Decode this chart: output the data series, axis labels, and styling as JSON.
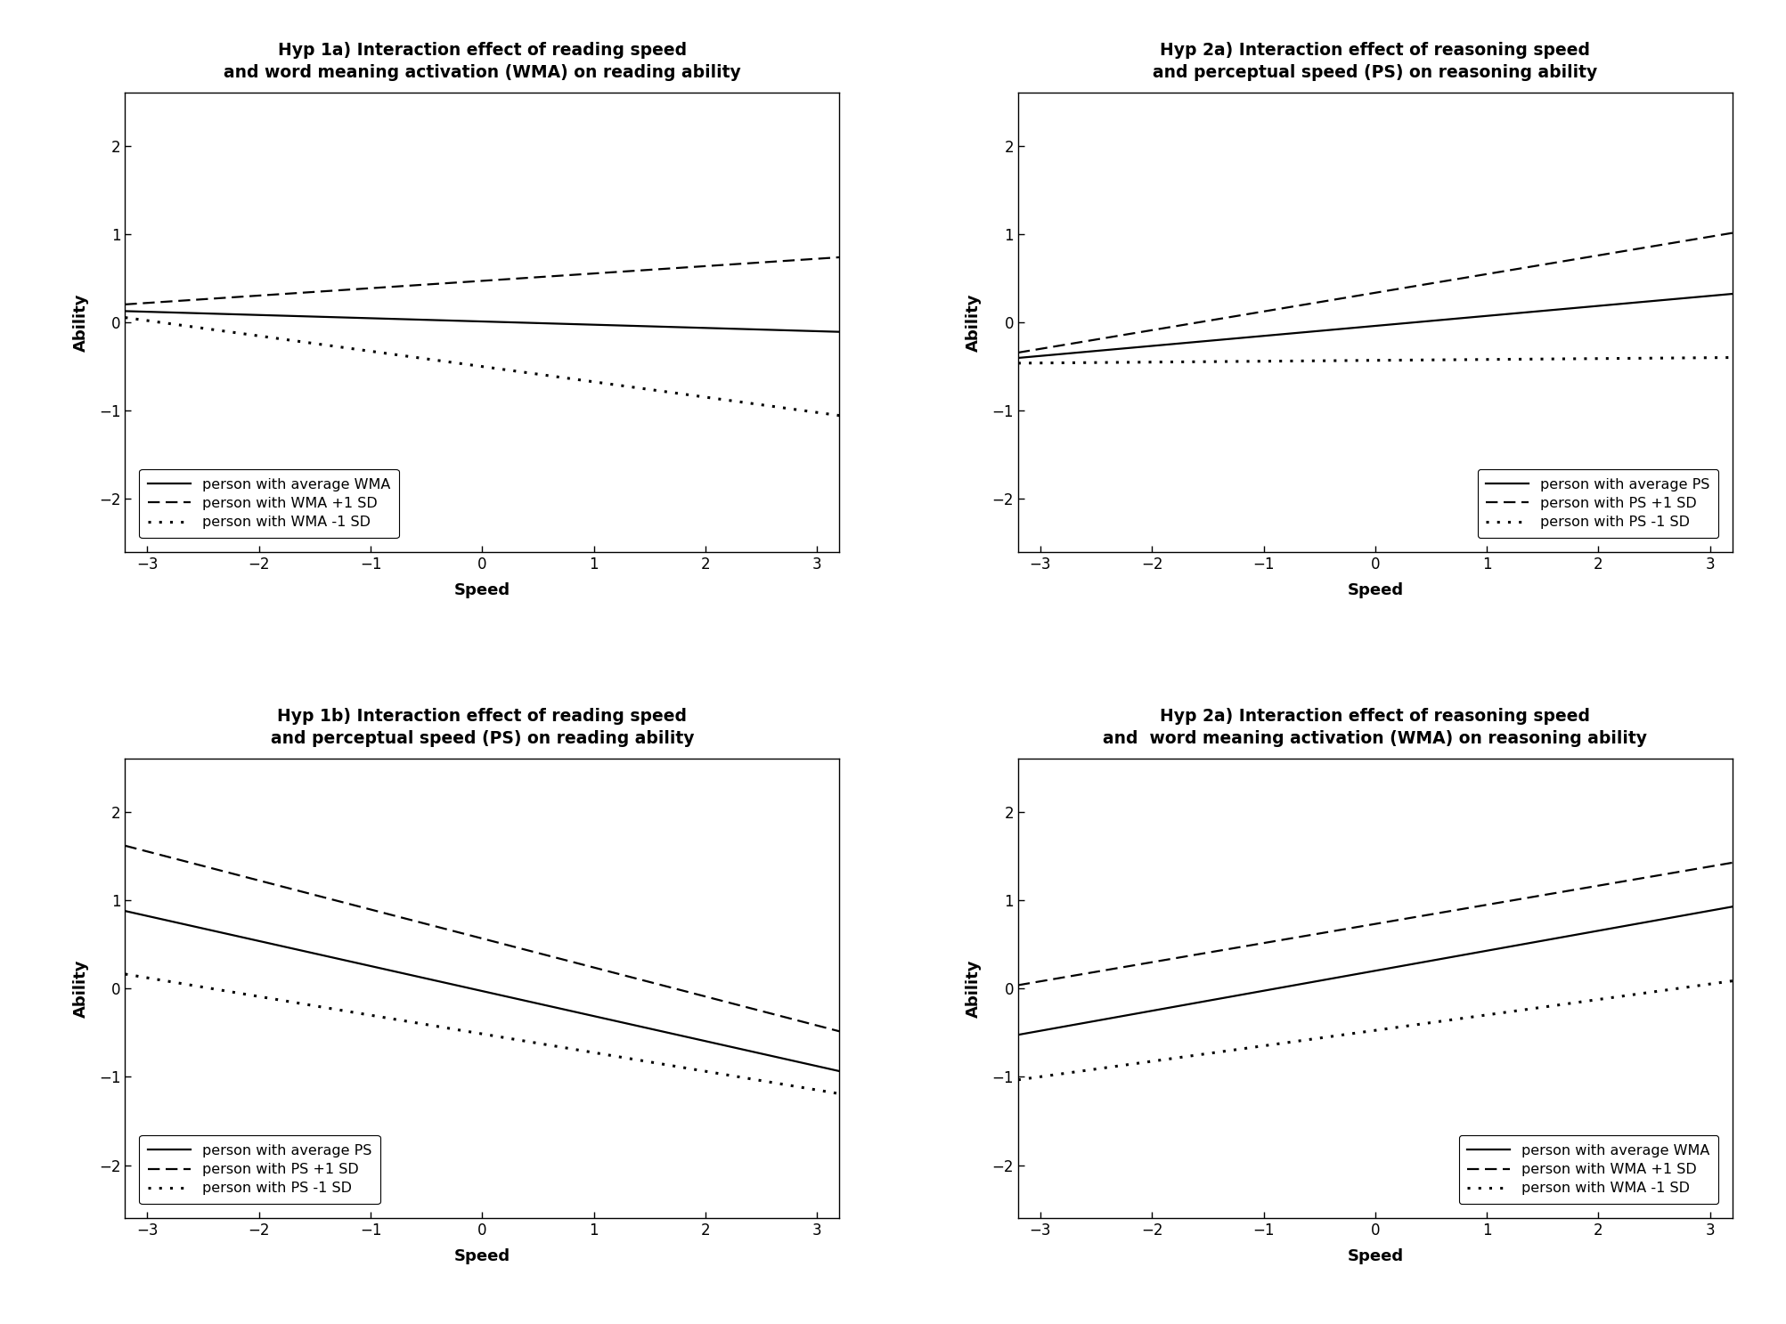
{
  "plots": [
    {
      "title": "Hyp 1a) Interaction effect of reading speed\nand word meaning activation (WMA) on reading ability",
      "xlabel": "Speed",
      "ylabel": "Ability",
      "xlim": [
        -3.2,
        3.2
      ],
      "ylim": [
        -2.6,
        2.6
      ],
      "yticks": [
        -2,
        -1,
        0,
        1,
        2
      ],
      "xticks": [
        -3,
        -2,
        -1,
        0,
        1,
        2,
        3
      ],
      "lines": [
        {
          "label": "person with average WMA",
          "style": "solid",
          "start": 0.12,
          "end": -0.1
        },
        {
          "label": "person with WMA +1 SD",
          "style": "dashed",
          "start": 0.22,
          "end": 0.72
        },
        {
          "label": "person with WMA -1 SD",
          "style": "dotted",
          "start": 0.02,
          "end": -1.02
        }
      ],
      "legend_loc": "lower left",
      "legend_bbox": null
    },
    {
      "title": "Hyp 2a) Interaction effect of reasoning speed\nand perceptual speed (PS) on reasoning ability",
      "xlabel": "Speed",
      "ylabel": "Ability",
      "xlim": [
        -3.2,
        3.2
      ],
      "ylim": [
        -2.6,
        2.6
      ],
      "yticks": [
        -2,
        -1,
        0,
        1,
        2
      ],
      "xticks": [
        -3,
        -2,
        -1,
        0,
        1,
        2,
        3
      ],
      "lines": [
        {
          "label": "person with average PS",
          "style": "solid",
          "start": -0.38,
          "end": 0.3
        },
        {
          "label": "person with PS +1 SD",
          "style": "dashed",
          "start": -0.3,
          "end": 0.97
        },
        {
          "label": "person with PS -1 SD",
          "style": "dotted",
          "start": -0.46,
          "end": -0.4
        }
      ],
      "legend_loc": "lower right",
      "legend_bbox": null
    },
    {
      "title": "Hyp 1b) Interaction effect of reading speed\nand perceptual speed (PS) on reading ability",
      "xlabel": "Speed",
      "ylabel": "Ability",
      "xlim": [
        -3.2,
        3.2
      ],
      "ylim": [
        -2.6,
        2.6
      ],
      "yticks": [
        -2,
        -1,
        0,
        1,
        2
      ],
      "xticks": [
        -3,
        -2,
        -1,
        0,
        1,
        2,
        3
      ],
      "lines": [
        {
          "label": "person with average PS",
          "style": "solid",
          "start": 0.82,
          "end": -0.88
        },
        {
          "label": "person with PS +1 SD",
          "style": "dashed",
          "start": 1.55,
          "end": -0.42
        },
        {
          "label": "person with PS -1 SD",
          "style": "dotted",
          "start": 0.12,
          "end": -1.15
        }
      ],
      "legend_loc": "lower left",
      "legend_bbox": null
    },
    {
      "title": "Hyp 2a) Interaction effect of reasoning speed\nand  word meaning activation (WMA) on reasoning ability",
      "xlabel": "Speed",
      "ylabel": "Ability",
      "xlim": [
        -3.2,
        3.2
      ],
      "ylim": [
        -2.6,
        2.6
      ],
      "yticks": [
        -2,
        -1,
        0,
        1,
        2
      ],
      "xticks": [
        -3,
        -2,
        -1,
        0,
        1,
        2,
        3
      ],
      "lines": [
        {
          "label": "person with average WMA",
          "style": "solid",
          "start": -0.48,
          "end": 0.88
        },
        {
          "label": "person with WMA +1 SD",
          "style": "dashed",
          "start": 0.08,
          "end": 1.38
        },
        {
          "label": "person with WMA -1 SD",
          "style": "dotted",
          "start": -1.0,
          "end": 0.05
        }
      ],
      "legend_loc": "lower right",
      "legend_bbox": null
    }
  ],
  "bg_color": "#ffffff",
  "line_color": "#000000",
  "title_fontsize": 13.5,
  "label_fontsize": 13,
  "tick_fontsize": 12,
  "legend_fontsize": 11.5
}
